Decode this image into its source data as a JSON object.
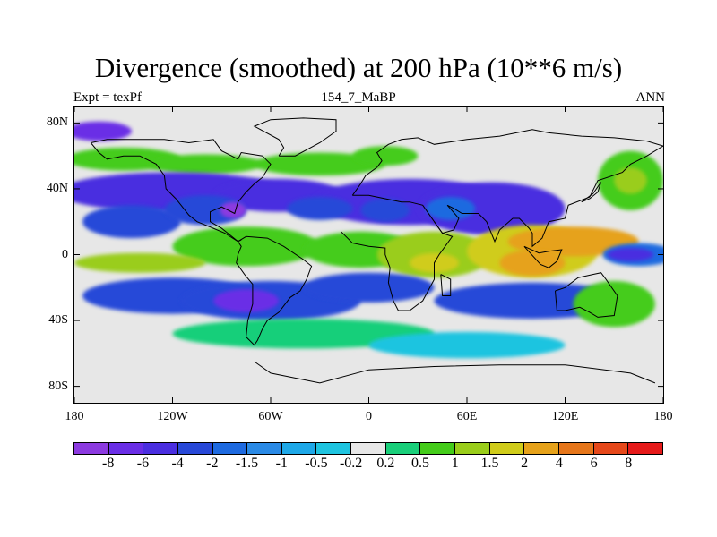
{
  "chart_data": {
    "type": "heatmap",
    "title": "Divergence (smoothed) at 200 hPa (10**6 m/s)",
    "subtitle_left": "Expt = texPf",
    "subtitle_center": "154_7_MaBP",
    "subtitle_right": "ANN",
    "x_ticks": [
      "180",
      "120W",
      "60W",
      "0",
      "60E",
      "120E",
      "180"
    ],
    "x_tick_values": [
      -180,
      -120,
      -60,
      0,
      60,
      120,
      180
    ],
    "y_ticks": [
      "80N",
      "40N",
      "0",
      "40S",
      "80S"
    ],
    "y_tick_values": [
      80,
      40,
      0,
      -40,
      -80
    ],
    "xlim": [
      -180,
      180
    ],
    "ylim": [
      -90,
      90
    ],
    "colorbar_labels": [
      "-8",
      "-6",
      "-4",
      "-2",
      "-1.5",
      "-1",
      "-0.5",
      "-0.2",
      "0.2",
      "0.5",
      "1",
      "1.5",
      "2",
      "4",
      "6",
      "8"
    ],
    "colorbar_colors": [
      "#8c3ae0",
      "#6a2ee6",
      "#4a2ee0",
      "#2848d8",
      "#1e6ae0",
      "#2a8ae6",
      "#1ea8e8",
      "#1ec4e0",
      "#e7e7e7",
      "#19cf7a",
      "#44cc1a",
      "#9acd1a",
      "#d0cc1a",
      "#e6a21a",
      "#e6761a",
      "#e6481a",
      "#e61a1a"
    ],
    "background_color": "#e7e7e7",
    "blobs": [
      {
        "lon": -165,
        "lat": 75,
        "rlon": 20,
        "rlat": 6,
        "level": 1
      },
      {
        "lon": -150,
        "lat": 58,
        "rlon": 35,
        "rlat": 7,
        "level": 10
      },
      {
        "lon": -100,
        "lat": 55,
        "rlon": 35,
        "rlat": 6,
        "level": 10
      },
      {
        "lon": -30,
        "lat": 55,
        "rlon": 40,
        "rlat": 7,
        "level": 10
      },
      {
        "lon": 10,
        "lat": 60,
        "rlon": 20,
        "rlat": 6,
        "level": 10
      },
      {
        "lon": 160,
        "lat": 45,
        "rlon": 20,
        "rlat": 18,
        "level": 10
      },
      {
        "lon": 160,
        "lat": 45,
        "rlon": 10,
        "rlat": 8,
        "level": 11
      },
      {
        "lon": -120,
        "lat": 38,
        "rlon": 70,
        "rlat": 12,
        "level": 2
      },
      {
        "lon": -55,
        "lat": 36,
        "rlon": 40,
        "rlat": 10,
        "level": 2
      },
      {
        "lon": 25,
        "lat": 32,
        "rlon": 60,
        "rlat": 14,
        "level": 2
      },
      {
        "lon": 75,
        "lat": 28,
        "rlon": 45,
        "rlat": 16,
        "level": 2
      },
      {
        "lon": -145,
        "lat": 20,
        "rlon": 30,
        "rlat": 10,
        "level": 3
      },
      {
        "lon": -100,
        "lat": 27,
        "rlon": 25,
        "rlat": 9,
        "level": 3
      },
      {
        "lon": -83,
        "lat": 27,
        "rlon": 8,
        "rlat": 5,
        "level": 0
      },
      {
        "lon": -30,
        "lat": 28,
        "rlon": 20,
        "rlat": 7,
        "level": 3
      },
      {
        "lon": 10,
        "lat": 27,
        "rlon": 15,
        "rlat": 7,
        "level": 3
      },
      {
        "lon": 50,
        "lat": 28,
        "rlon": 15,
        "rlat": 7,
        "level": 4
      },
      {
        "lon": -75,
        "lat": 5,
        "rlon": 45,
        "rlat": 12,
        "level": 10
      },
      {
        "lon": -5,
        "lat": 3,
        "rlon": 35,
        "rlat": 11,
        "level": 10
      },
      {
        "lon": 40,
        "lat": 0,
        "rlon": 35,
        "rlat": 14,
        "level": 11
      },
      {
        "lon": 100,
        "lat": 2,
        "rlon": 40,
        "rlat": 16,
        "level": 12
      },
      {
        "lon": 125,
        "lat": 8,
        "rlon": 40,
        "rlat": 9,
        "level": 13
      },
      {
        "lon": 100,
        "lat": -5,
        "rlon": 20,
        "rlat": 8,
        "level": 13
      },
      {
        "lon": 40,
        "lat": -5,
        "rlon": 15,
        "rlat": 6,
        "level": 12
      },
      {
        "lon": -140,
        "lat": -5,
        "rlon": 40,
        "rlat": 6,
        "level": 11
      },
      {
        "lon": 165,
        "lat": 0,
        "rlon": 22,
        "rlat": 7,
        "level": 4
      },
      {
        "lon": 160,
        "lat": 0,
        "rlon": 14,
        "rlat": 4,
        "level": 2
      },
      {
        "lon": -120,
        "lat": -25,
        "rlon": 55,
        "rlat": 11,
        "level": 3
      },
      {
        "lon": -60,
        "lat": -28,
        "rlon": 55,
        "rlat": 12,
        "level": 3
      },
      {
        "lon": -75,
        "lat": -28,
        "rlon": 20,
        "rlat": 7,
        "level": 1
      },
      {
        "lon": 0,
        "lat": -20,
        "rlon": 40,
        "rlat": 9,
        "level": 3
      },
      {
        "lon": 100,
        "lat": -28,
        "rlon": 60,
        "rlat": 11,
        "level": 3
      },
      {
        "lon": -40,
        "lat": -48,
        "rlon": 80,
        "rlat": 9,
        "level": 9
      },
      {
        "lon": 60,
        "lat": -55,
        "rlon": 60,
        "rlat": 8,
        "level": 7
      },
      {
        "lon": 150,
        "lat": -30,
        "rlon": 25,
        "rlat": 14,
        "level": 10
      }
    ],
    "coastlines": [
      [
        [
          -170,
          68
        ],
        [
          -160,
          70
        ],
        [
          -140,
          70
        ],
        [
          -125,
          70
        ],
        [
          -110,
          68
        ],
        [
          -95,
          70
        ],
        [
          -90,
          63
        ],
        [
          -80,
          58
        ],
        [
          -78,
          62
        ],
        [
          -65,
          60
        ],
        [
          -60,
          55
        ],
        [
          -65,
          47
        ],
        [
          -70,
          43
        ],
        [
          -75,
          38
        ],
        [
          -80,
          32
        ],
        [
          -82,
          25
        ],
        [
          -90,
          29
        ],
        [
          -97,
          26
        ],
        [
          -97,
          20
        ],
        [
          -90,
          16
        ],
        [
          -85,
          12
        ],
        [
          -80,
          8
        ],
        [
          -78,
          9
        ]
      ],
      [
        [
          -170,
          68
        ],
        [
          -165,
          62
        ],
        [
          -160,
          58
        ],
        [
          -150,
          60
        ],
        [
          -140,
          60
        ],
        [
          -130,
          55
        ],
        [
          -125,
          48
        ],
        [
          -124,
          40
        ],
        [
          -118,
          34
        ],
        [
          -110,
          24
        ],
        [
          -105,
          20
        ],
        [
          -95,
          16
        ],
        [
          -88,
          13
        ],
        [
          -80,
          8
        ]
      ],
      [
        [
          -80,
          8
        ],
        [
          -75,
          11
        ],
        [
          -62,
          10
        ],
        [
          -52,
          5
        ],
        [
          -40,
          -3
        ],
        [
          -35,
          -7
        ],
        [
          -38,
          -15
        ],
        [
          -42,
          -22
        ],
        [
          -48,
          -26
        ],
        [
          -55,
          -35
        ],
        [
          -62,
          -40
        ],
        [
          -65,
          -45
        ],
        [
          -68,
          -52
        ],
        [
          -70,
          -55
        ],
        [
          -75,
          -50
        ],
        [
          -74,
          -40
        ],
        [
          -71,
          -30
        ],
        [
          -71,
          -18
        ],
        [
          -76,
          -12
        ],
        [
          -81,
          -5
        ],
        [
          -80,
          0
        ],
        [
          -78,
          5
        ],
        [
          -80,
          8
        ]
      ],
      [
        [
          -55,
          60
        ],
        [
          -45,
          60
        ],
        [
          -30,
          68
        ],
        [
          -20,
          75
        ],
        [
          -20,
          82
        ],
        [
          -40,
          83
        ],
        [
          -60,
          82
        ],
        [
          -70,
          78
        ],
        [
          -55,
          70
        ],
        [
          -52,
          65
        ],
        [
          -55,
          60
        ]
      ],
      [
        [
          -10,
          36
        ],
        [
          -5,
          43
        ],
        [
          -2,
          48
        ],
        [
          5,
          53
        ],
        [
          8,
          57
        ],
        [
          5,
          62
        ],
        [
          12,
          67
        ],
        [
          20,
          70
        ],
        [
          30,
          71
        ],
        [
          40,
          67
        ],
        [
          60,
          70
        ],
        [
          80,
          72
        ],
        [
          100,
          76
        ],
        [
          110,
          74
        ],
        [
          130,
          72
        ],
        [
          150,
          71
        ],
        [
          170,
          69
        ],
        [
          180,
          66
        ]
      ],
      [
        [
          180,
          66
        ],
        [
          170,
          60
        ],
        [
          160,
          55
        ],
        [
          155,
          50
        ],
        [
          140,
          45
        ],
        [
          135,
          35
        ],
        [
          122,
          30
        ],
        [
          120,
          22
        ],
        [
          110,
          20
        ],
        [
          106,
          10
        ],
        [
          100,
          5
        ],
        [
          100,
          13
        ],
        [
          98,
          16
        ],
        [
          92,
          22
        ],
        [
          88,
          22
        ],
        [
          80,
          15
        ],
        [
          77,
          8
        ],
        [
          72,
          20
        ],
        [
          67,
          25
        ],
        [
          57,
          25
        ],
        [
          52,
          28
        ],
        [
          48,
          30
        ],
        [
          55,
          22
        ],
        [
          52,
          15
        ],
        [
          45,
          13
        ],
        [
          40,
          20
        ],
        [
          33,
          30
        ],
        [
          25,
          32
        ],
        [
          20,
          32
        ],
        [
          10,
          34
        ],
        [
          0,
          36
        ],
        [
          -10,
          36
        ]
      ],
      [
        [
          -17,
          21
        ],
        [
          -17,
          14
        ],
        [
          -10,
          7
        ],
        [
          0,
          5
        ],
        [
          10,
          4
        ],
        [
          10,
          0
        ],
        [
          13,
          -8
        ],
        [
          12,
          -17
        ],
        [
          15,
          -28
        ],
        [
          18,
          -34
        ],
        [
          25,
          -34
        ],
        [
          33,
          -28
        ],
        [
          40,
          -15
        ],
        [
          40,
          -5
        ],
        [
          43,
          0
        ],
        [
          51,
          11
        ],
        [
          45,
          13
        ],
        [
          40,
          20
        ]
      ],
      [
        [
          44,
          -12
        ],
        [
          50,
          -15
        ],
        [
          50,
          -25
        ],
        [
          45,
          -25
        ],
        [
          44,
          -12
        ]
      ],
      [
        [
          114,
          -22
        ],
        [
          120,
          -20
        ],
        [
          128,
          -14
        ],
        [
          137,
          -12
        ],
        [
          142,
          -11
        ],
        [
          145,
          -15
        ],
        [
          152,
          -25
        ],
        [
          150,
          -37
        ],
        [
          140,
          -38
        ],
        [
          135,
          -35
        ],
        [
          129,
          -32
        ],
        [
          120,
          -34
        ],
        [
          115,
          -34
        ],
        [
          114,
          -22
        ]
      ],
      [
        [
          95,
          5
        ],
        [
          105,
          -6
        ],
        [
          110,
          -8
        ],
        [
          115,
          -4
        ],
        [
          118,
          3
        ],
        [
          110,
          2
        ],
        [
          104,
          1
        ],
        [
          95,
          5
        ]
      ],
      [
        [
          130,
          32
        ],
        [
          135,
          34
        ],
        [
          140,
          38
        ],
        [
          142,
          44
        ],
        [
          137,
          37
        ],
        [
          130,
          32
        ]
      ],
      [
        [
          -70,
          -65
        ],
        [
          -60,
          -72
        ],
        [
          -30,
          -78
        ],
        [
          0,
          -70
        ],
        [
          40,
          -68
        ],
        [
          80,
          -67
        ],
        [
          120,
          -67
        ],
        [
          160,
          -72
        ],
        [
          175,
          -78
        ]
      ]
    ]
  }
}
